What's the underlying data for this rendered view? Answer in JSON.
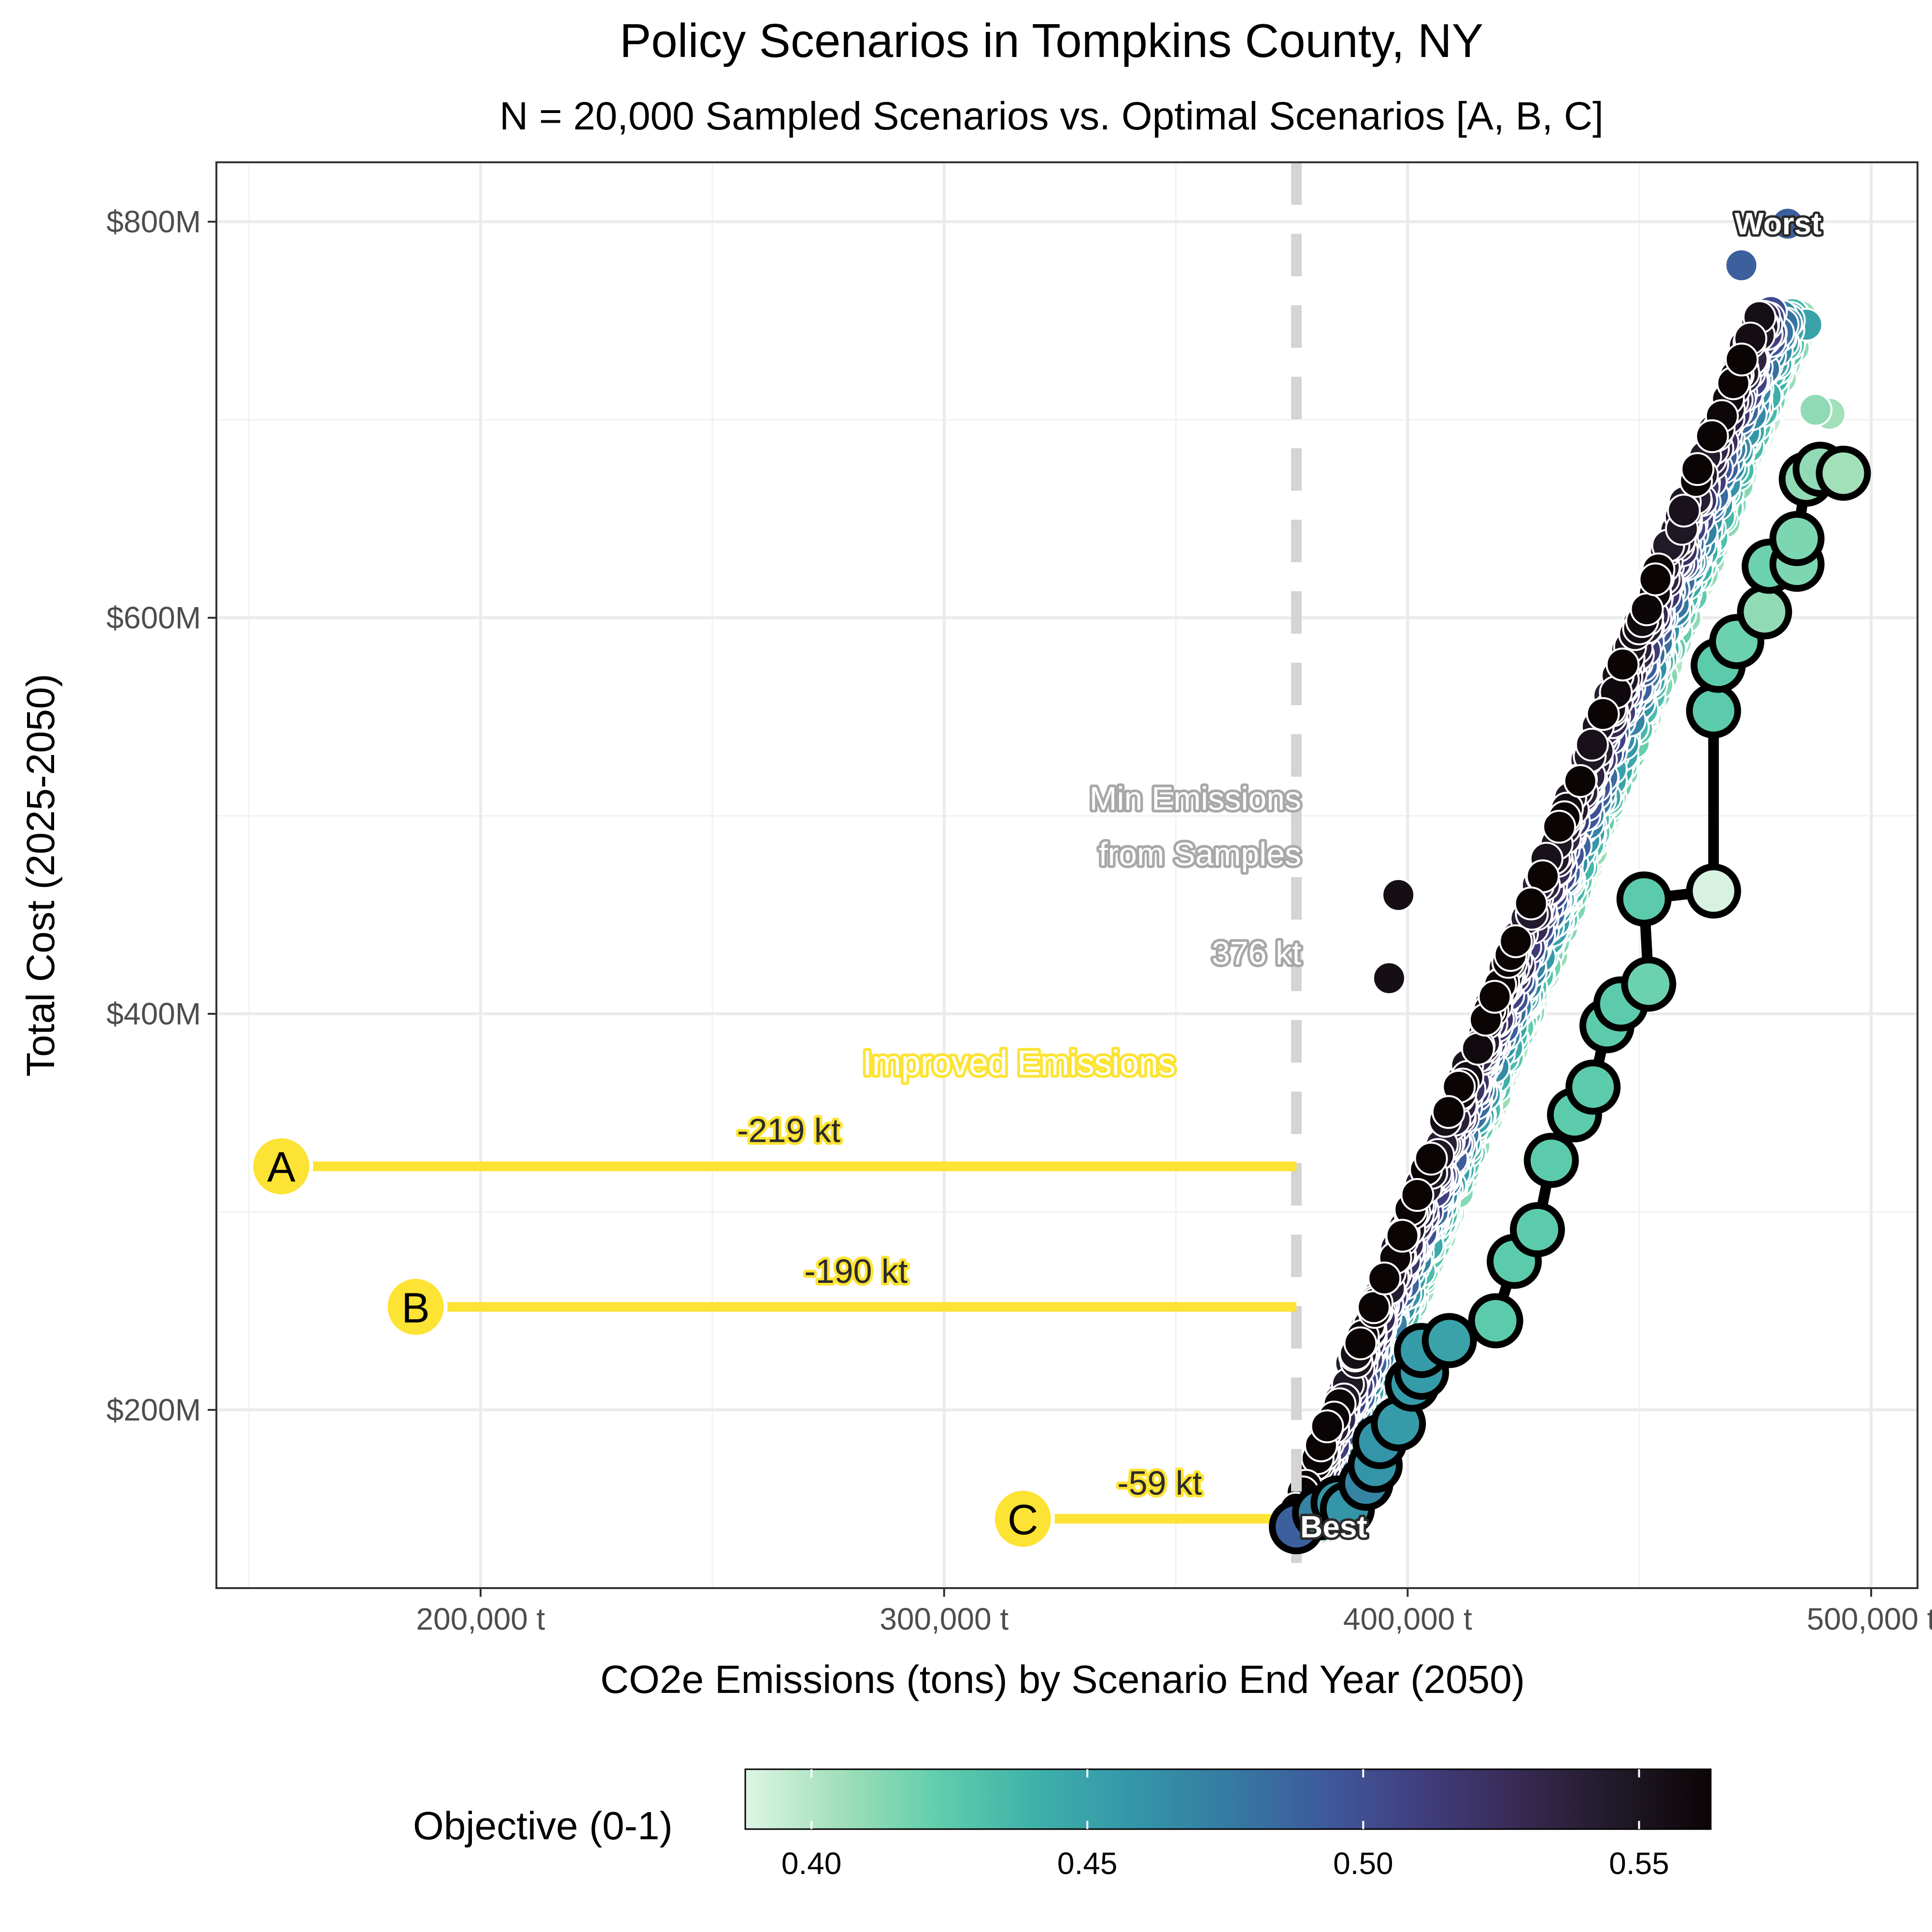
{
  "chart_data": {
    "type": "scatter",
    "title": "Policy Scenarios in Tompkins County, NY",
    "subtitle": "N = 20,000 Sampled Scenarios vs. Optimal Scenarios [A, B, C]",
    "xlabel": "CO2e Emissions (tons) by Scenario End Year (2050)",
    "ylabel": "Total Cost (2025-2050)",
    "xlim": [
      143000,
      510000
    ],
    "ylim": [
      110,
      830
    ],
    "x_ticks": [
      200000,
      300000,
      400000,
      500000
    ],
    "x_tick_labels": [
      "200,000 t",
      "300,000 t",
      "400,000 t",
      "500,000 t"
    ],
    "y_ticks": [
      200,
      400,
      600,
      800
    ],
    "y_tick_labels": [
      "$200M",
      "$400M",
      "$600M",
      "$800M"
    ],
    "grid": true,
    "legend": {
      "title": "Objective (0-1)",
      "position": "bottom",
      "range": [
        0.388,
        0.563
      ],
      "ticks": [
        0.4,
        0.45,
        0.5,
        0.55
      ],
      "tick_labels": [
        "0.40",
        "0.45",
        "0.50",
        "0.55"
      ],
      "colors": [
        "#def5e5",
        "#a0dfb9",
        "#60ceac",
        "#3eb1a9",
        "#3497a9",
        "#357ba2",
        "#3e5a9c",
        "#413e7e",
        "#382a54",
        "#211a29",
        "#0b0405"
      ]
    },
    "min_emissions_line": {
      "x": 376000,
      "label_line1": "Min Emissions",
      "label_line2": "from Samples",
      "value_label": "376 kt"
    },
    "improvement_note": "Improved Emissions",
    "optimal_scenarios": [
      {
        "label": "A",
        "x": 157000,
        "y": 323,
        "reduction_label": "-219 kt"
      },
      {
        "label": "B",
        "x": 186000,
        "y": 252,
        "reduction_label": "-190 kt"
      },
      {
        "label": "C",
        "x": 317000,
        "y": 145,
        "reduction_label": "-59 kt"
      }
    ],
    "best_label": "Best",
    "best_point": {
      "x": 376000,
      "y": 141
    },
    "worst_label": "Worst",
    "worst_point": {
      "x": 482000,
      "y": 799
    },
    "pareto_front": [
      {
        "x": 376000,
        "y": 141,
        "z": 0.49
      },
      {
        "x": 381000,
        "y": 148,
        "z": 0.47
      },
      {
        "x": 385000,
        "y": 153,
        "z": 0.46
      },
      {
        "x": 387000,
        "y": 150,
        "z": 0.46
      },
      {
        "x": 391000,
        "y": 163,
        "z": 0.47
      },
      {
        "x": 393000,
        "y": 172,
        "z": 0.46
      },
      {
        "x": 394000,
        "y": 184,
        "z": 0.46
      },
      {
        "x": 398000,
        "y": 193,
        "z": 0.455
      },
      {
        "x": 401000,
        "y": 213,
        "z": 0.455
      },
      {
        "x": 403000,
        "y": 219,
        "z": 0.455
      },
      {
        "x": 403000,
        "y": 230,
        "z": 0.455
      },
      {
        "x": 409000,
        "y": 235,
        "z": 0.45
      },
      {
        "x": 419000,
        "y": 245,
        "z": 0.425
      },
      {
        "x": 423000,
        "y": 275,
        "z": 0.425
      },
      {
        "x": 428000,
        "y": 291,
        "z": 0.425
      },
      {
        "x": 431000,
        "y": 326,
        "z": 0.425
      },
      {
        "x": 436000,
        "y": 349,
        "z": 0.425
      },
      {
        "x": 440000,
        "y": 363,
        "z": 0.425
      },
      {
        "x": 443000,
        "y": 394,
        "z": 0.425
      },
      {
        "x": 446000,
        "y": 405,
        "z": 0.425
      },
      {
        "x": 452000,
        "y": 415,
        "z": 0.42
      },
      {
        "x": 451000,
        "y": 458,
        "z": 0.425
      },
      {
        "x": 466000,
        "y": 462,
        "z": 0.39
      },
      {
        "x": 466000,
        "y": 553,
        "z": 0.425
      },
      {
        "x": 467000,
        "y": 576,
        "z": 0.425
      },
      {
        "x": 471000,
        "y": 588,
        "z": 0.42
      },
      {
        "x": 477000,
        "y": 603,
        "z": 0.41
      },
      {
        "x": 478000,
        "y": 626,
        "z": 0.42
      },
      {
        "x": 484000,
        "y": 627,
        "z": 0.415
      },
      {
        "x": 484000,
        "y": 640,
        "z": 0.415
      },
      {
        "x": 486000,
        "y": 670,
        "z": 0.41
      },
      {
        "x": 489000,
        "y": 675,
        "z": 0.41
      },
      {
        "x": 494000,
        "y": 673,
        "z": 0.405
      }
    ]
  }
}
